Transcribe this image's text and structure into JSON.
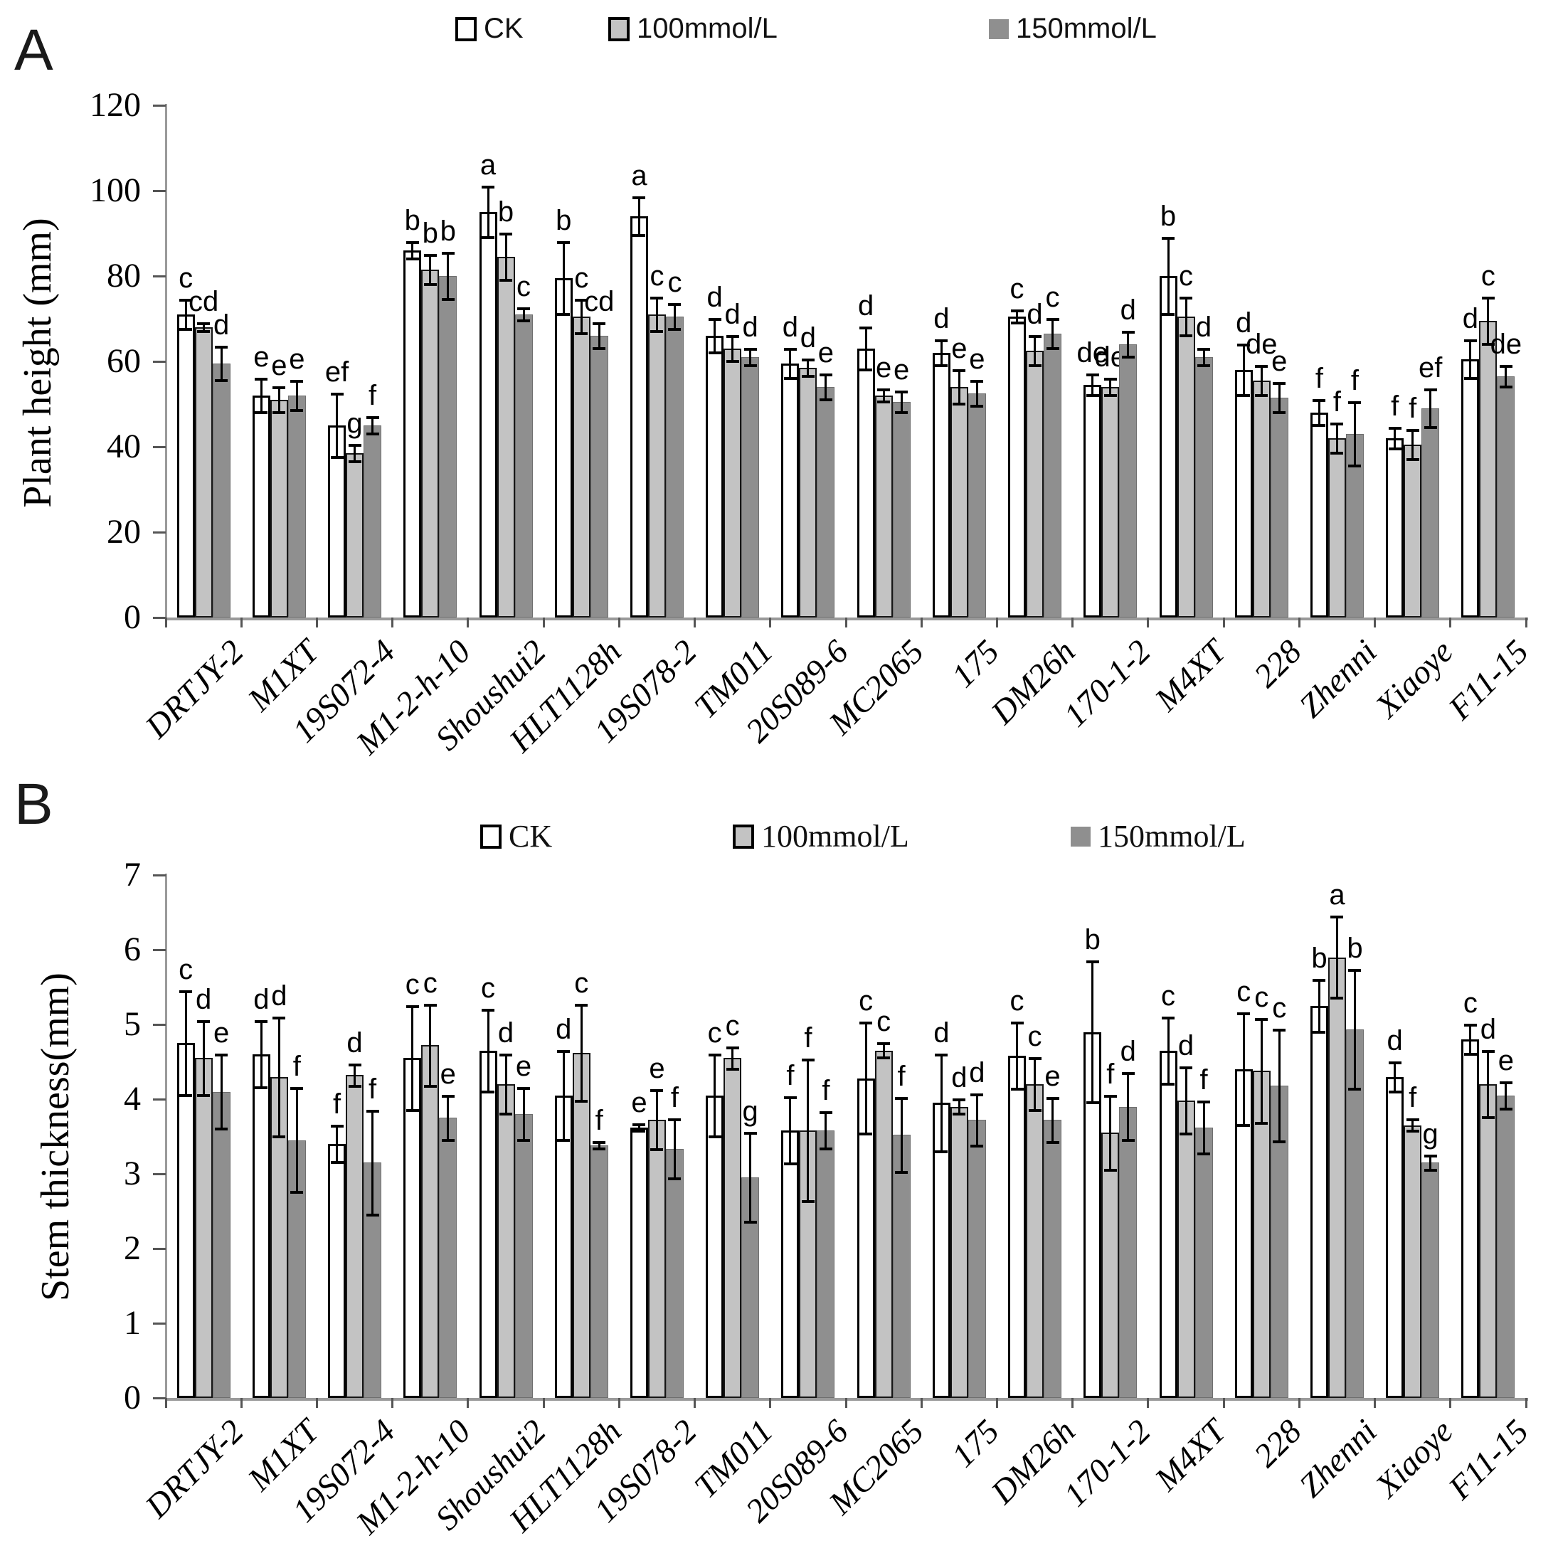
{
  "figure": {
    "panel_a_label": "A",
    "panel_b_label": "B",
    "colors": {
      "ck_fill": "#ffffff",
      "mmol100_fill": "#c3c3c3",
      "mmol150_fill": "#8f8f8f",
      "bar_border": "#000000",
      "axis": "#9a9a9a"
    }
  },
  "chart_data": [
    {
      "type": "bar",
      "panel": "A",
      "title": "",
      "xlabel": "",
      "ylabel": "Plant height (mm)",
      "ylim": [
        0,
        120
      ],
      "ytick_step": 20,
      "grid": false,
      "legend_position": "top",
      "legend": [
        "CK",
        "100mmol/L",
        "150mmol/L"
      ],
      "categories": [
        "DRTJY-2",
        "M1XT",
        "19S072-4",
        "M1-2-h-10",
        "Shoushui2",
        "HLT1128h",
        "19S078-2",
        "TM011",
        "20S089-6",
        "MC2065",
        "175",
        "DM26h",
        "170-1-2",
        "M4XT",
        "228",
        "Zhenni",
        "Xiaoye",
        "F11-15"
      ],
      "series": [
        {
          "name": "CK",
          "values": [
            71,
            52,
            45,
            86,
            95,
            79.5,
            94,
            66,
            59.5,
            63,
            62,
            70.5,
            54.5,
            80,
            58,
            48,
            42,
            60.5
          ],
          "errors": [
            3.5,
            4,
            7.5,
            2,
            6,
            8.5,
            4.5,
            4,
            3.5,
            5,
            3,
            1.5,
            2.5,
            9,
            6,
            3,
            2.5,
            4.5
          ],
          "letters": [
            "c",
            "e",
            "ef",
            "b",
            "a",
            "b",
            "a",
            "d",
            "d",
            "d",
            "d",
            "c",
            "de",
            "b",
            "d",
            "f",
            "f",
            "d"
          ]
        },
        {
          "name": "100mmol/L",
          "values": [
            68,
            51,
            38.5,
            81.5,
            84.5,
            70.5,
            71,
            63,
            58.5,
            52,
            54,
            62.5,
            54,
            70.5,
            55.5,
            42,
            40.5,
            69.5
          ],
          "errors": [
            1,
            3,
            2,
            3.5,
            5.5,
            4,
            4,
            3,
            2,
            1.5,
            4,
            3.5,
            2,
            4.5,
            3.5,
            3.5,
            3.5,
            5.5
          ],
          "letters": [
            "cd",
            "e",
            "g",
            "b",
            "b",
            "c",
            "c",
            "d",
            "d",
            "e",
            "e",
            "d",
            "de",
            "c",
            "de",
            "f",
            "f",
            "c"
          ]
        },
        {
          "name": "150mmol/L",
          "values": [
            59.5,
            52,
            45,
            80,
            71,
            66,
            70.5,
            61,
            54,
            50.5,
            52.5,
            66.5,
            64,
            61,
            51.5,
            43,
            49,
            56.5
          ],
          "errors": [
            4,
            3.5,
            2,
            5.5,
            1.5,
            3,
            3,
            2,
            3,
            2.5,
            3,
            3.5,
            3,
            2,
            3.5,
            7.5,
            4.5,
            2.5
          ],
          "letters": [
            "d",
            "e",
            "f",
            "b",
            "c",
            "cd",
            "c",
            "d",
            "e",
            "e",
            "e",
            "c",
            "d",
            "d",
            "e",
            "f",
            "ef",
            "de"
          ]
        }
      ]
    },
    {
      "type": "bar",
      "panel": "B",
      "title": "",
      "xlabel": "",
      "ylabel": "Stem thickness(mm)",
      "ylim": [
        0,
        7
      ],
      "ytick_step": 1,
      "grid": false,
      "legend_position": "top",
      "legend": [
        "CK",
        "100mmol/L",
        "150mmol/L"
      ],
      "categories": [
        "DRTJY-2",
        "M1XT",
        "19S072-4",
        "M1-2-h-10",
        "Shoushui2",
        "HLT1128h",
        "19S078-2",
        "TM011",
        "20S089-6",
        "MC2065",
        "175",
        "DM26h",
        "170-1-2",
        "M4XT",
        "228",
        "Zhenni",
        "Xiaoye",
        "F11-15"
      ],
      "series": [
        {
          "name": "CK",
          "values": [
            4.75,
            4.6,
            3.4,
            4.55,
            4.65,
            4.05,
            3.62,
            4.05,
            3.58,
            4.28,
            3.95,
            4.58,
            4.9,
            4.65,
            4.4,
            5.25,
            4.3,
            4.8
          ],
          "errors": [
            0.7,
            0.45,
            0.25,
            0.7,
            0.55,
            0.6,
            0.05,
            0.55,
            0.45,
            0.75,
            0.65,
            0.45,
            0.95,
            0.45,
            0.75,
            0.35,
            0.2,
            0.2
          ],
          "letters": [
            "c",
            "d",
            "f",
            "c",
            "c",
            "d",
            "e",
            "c",
            "f",
            "c",
            "d",
            "c",
            "b",
            "c",
            "c",
            "b",
            "d",
            "c"
          ]
        },
        {
          "name": "100mmol/L",
          "values": [
            4.55,
            4.3,
            4.32,
            4.72,
            4.2,
            4.62,
            3.72,
            4.55,
            3.58,
            4.65,
            3.9,
            4.2,
            3.55,
            3.98,
            4.38,
            5.9,
            3.65,
            4.2
          ],
          "errors": [
            0.5,
            0.8,
            0.15,
            0.55,
            0.4,
            0.65,
            0.4,
            0.15,
            0.95,
            0.1,
            0.1,
            0.35,
            0.5,
            0.45,
            0.7,
            0.55,
            0.08,
            0.45
          ],
          "letters": [
            "d",
            "d",
            "d",
            "c",
            "d",
            "c",
            "e",
            "c",
            "f",
            "c",
            "d",
            "c",
            "f",
            "d",
            "c",
            "a",
            "f",
            "d"
          ]
        },
        {
          "name": "150mmol/L",
          "values": [
            4.1,
            3.45,
            3.15,
            3.75,
            3.8,
            3.38,
            3.33,
            2.95,
            3.58,
            3.52,
            3.72,
            3.72,
            3.9,
            3.62,
            4.18,
            4.93,
            3.15,
            4.05
          ],
          "errors": [
            0.5,
            0.7,
            0.7,
            0.3,
            0.35,
            0.05,
            0.4,
            0.6,
            0.25,
            0.5,
            0.35,
            0.3,
            0.45,
            0.35,
            0.75,
            0.8,
            0.1,
            0.18
          ],
          "letters": [
            "e",
            "f",
            "f",
            "e",
            "e",
            "f",
            "f",
            "g",
            "f",
            "f",
            "d",
            "e",
            "d",
            "f",
            "c",
            "b",
            "g",
            "e"
          ]
        }
      ]
    }
  ]
}
